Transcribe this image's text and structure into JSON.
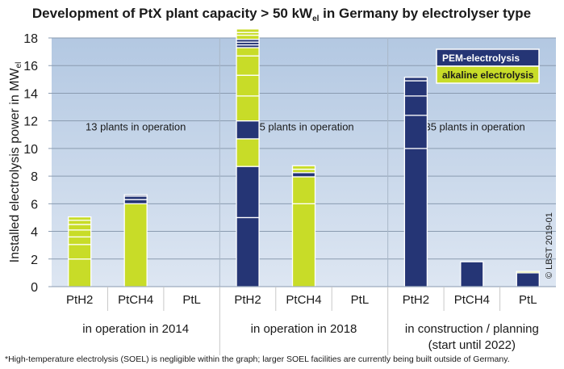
{
  "chart_data": {
    "type": "bar",
    "stacked": true,
    "title": "Development of PtX plant capacity > 50 kW",
    "title_subscript": "el",
    "title_suffix": " in Germany by electrolyser type",
    "ylabel": "Installed electrolysis power in MW",
    "ylabel_subscript": "el",
    "xlabel": "",
    "ylim": [
      0,
      18
    ],
    "yticks": [
      0,
      2,
      4,
      6,
      8,
      10,
      12,
      14,
      16,
      18
    ],
    "grid": true,
    "legend_position": "top-right",
    "legend": [
      {
        "name": "PEM-electrolysis",
        "color": "#253575",
        "text_color": "#ffffff"
      },
      {
        "name": "alkaline electrolysis",
        "color": "#c8dc28",
        "text_color": "#1a1a1a"
      }
    ],
    "groups": [
      {
        "label": "in operation in 2014",
        "label_line2": "",
        "note": "13 plants in operation",
        "categories": [
          {
            "name": "PtH2",
            "segments": [
              {
                "type": "alkaline electrolysis",
                "value": 2.0
              },
              {
                "type": "alkaline electrolysis",
                "value": 1.05
              },
              {
                "type": "alkaline electrolysis",
                "value": 0.55
              },
              {
                "type": "alkaline electrolysis",
                "value": 0.5
              },
              {
                "type": "alkaline electrolysis",
                "value": 0.4
              },
              {
                "type": "alkaline electrolysis",
                "value": 0.3
              },
              {
                "type": "alkaline electrolysis",
                "value": 0.25
              }
            ]
          },
          {
            "name": "PtCH4",
            "segments": [
              {
                "type": "alkaline electrolysis",
                "value": 6.0
              },
              {
                "type": "PEM-electrolysis",
                "value": 0.3
              },
              {
                "type": "PEM-electrolysis",
                "value": 0.25
              },
              {
                "type": "PEM-electrolysis",
                "value": 0.1
              }
            ]
          },
          {
            "name": "PtL",
            "segments": []
          }
        ]
      },
      {
        "label": "in operation in 2018",
        "label_line2": "",
        "note": "25 plants in operation",
        "categories": [
          {
            "name": "PtH2",
            "segments": [
              {
                "type": "PEM-electrolysis",
                "value": 5.0
              },
              {
                "type": "PEM-electrolysis",
                "value": 3.7
              },
              {
                "type": "alkaline electrolysis",
                "value": 2.0
              },
              {
                "type": "PEM-electrolysis",
                "value": 1.3
              },
              {
                "type": "alkaline electrolysis",
                "value": 1.8
              },
              {
                "type": "alkaline electrolysis",
                "value": 1.5
              },
              {
                "type": "alkaline electrolysis",
                "value": 1.4
              },
              {
                "type": "alkaline electrolysis",
                "value": 0.6
              },
              {
                "type": "PEM-electrolysis",
                "value": 0.2
              },
              {
                "type": "PEM-electrolysis",
                "value": 0.2
              },
              {
                "type": "PEM-electrolysis",
                "value": 0.2
              },
              {
                "type": "alkaline electrolysis",
                "value": 0.3
              },
              {
                "type": "alkaline electrolysis",
                "value": 0.2
              },
              {
                "type": "alkaline electrolysis",
                "value": 0.25
              }
            ]
          },
          {
            "name": "PtCH4",
            "segments": [
              {
                "type": "alkaline electrolysis",
                "value": 6.0
              },
              {
                "type": "alkaline electrolysis",
                "value": 1.95
              },
              {
                "type": "PEM-electrolysis",
                "value": 0.3
              },
              {
                "type": "alkaline electrolysis",
                "value": 0.25
              },
              {
                "type": "alkaline electrolysis",
                "value": 0.25
              }
            ]
          },
          {
            "name": "PtL",
            "segments": []
          }
        ]
      },
      {
        "label": "in construction / planning",
        "label_line2": "(start until 2022)",
        "note": ">35 plants in operation",
        "categories": [
          {
            "name": "PtH2",
            "segments": [
              {
                "type": "PEM-electrolysis",
                "value": 10.0
              },
              {
                "type": "PEM-electrolysis",
                "value": 2.4
              },
              {
                "type": "PEM-electrolysis",
                "value": 1.4
              },
              {
                "type": "PEM-electrolysis",
                "value": 1.1
              },
              {
                "type": "PEM-electrolysis",
                "value": 0.25
              }
            ]
          },
          {
            "name": "PtCH4",
            "segments": [
              {
                "type": "PEM-electrolysis",
                "value": 1.8
              }
            ]
          },
          {
            "name": "PtL",
            "segments": [
              {
                "type": "PEM-electrolysis",
                "value": 1.0
              },
              {
                "type": "alkaline electrolysis",
                "value": 0.1
              }
            ]
          }
        ]
      }
    ],
    "footnote": "*High-temperature electrolysis (SOEL) is negligible within the graph; larger SOEL facilities are currently being built outside of Germany.",
    "copyright": "© LBST 2019-01"
  },
  "colors": {
    "pem": "#253575",
    "alkaline": "#c8dc28",
    "plot_bg_top": "#b3c8e2",
    "plot_bg_bottom": "#dde6f2",
    "grid": "#8a9bb0",
    "separator": "#a9b7c8"
  }
}
